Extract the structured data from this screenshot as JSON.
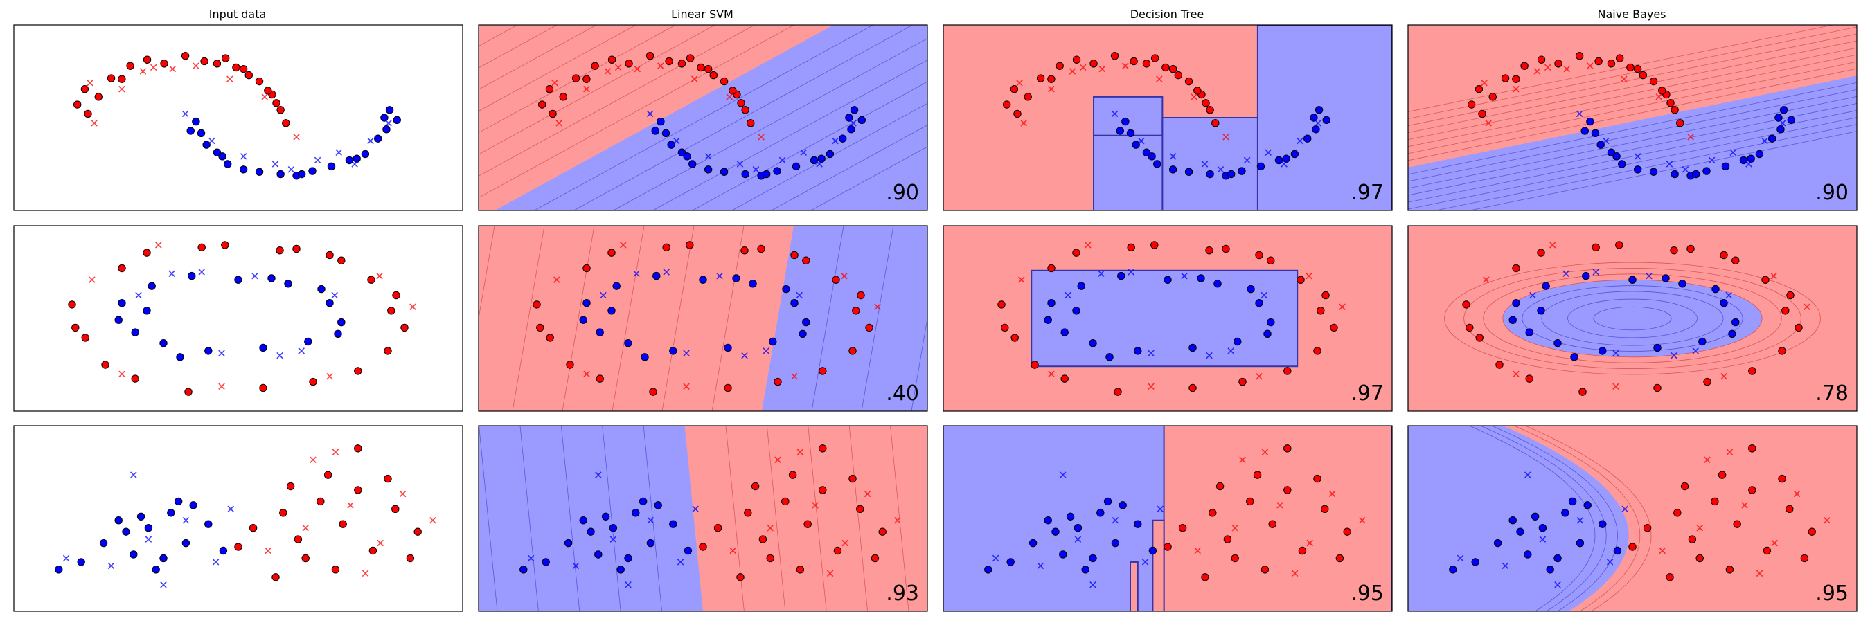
{
  "columns": [
    "Input data",
    "Linear SVM",
    "Decision Tree",
    "Naive Bayes"
  ],
  "colors": {
    "class0": "#ff0000",
    "class1": "#0000ff",
    "region0": "#ff9a9a",
    "region1": "#9a9aff",
    "point_edge": "#000000"
  },
  "legend_markers": {
    "train": "filled circle",
    "test": "cross"
  },
  "chart_data": [
    {
      "type": "scatter",
      "dataset": "moons",
      "xlim": [
        -1.62,
        2.62
      ],
      "ylim": [
        -0.95,
        1.45
      ],
      "scores": {
        "Linear SVM": ".90",
        "Decision Tree": ".97",
        "Naive Bayes": ".90"
      },
      "train_class0": [
        [
          -1.02,
          0.42
        ],
        [
          -0.95,
          0.62
        ],
        [
          -0.82,
          0.52
        ],
        [
          -0.7,
          0.76
        ],
        [
          -0.52,
          0.92
        ],
        [
          -0.36,
          1.0
        ],
        [
          -0.2,
          0.95
        ],
        [
          0.0,
          1.05
        ],
        [
          0.18,
          0.98
        ],
        [
          0.38,
          1.02
        ],
        [
          0.55,
          0.88
        ],
        [
          0.7,
          0.72
        ],
        [
          0.82,
          0.55
        ],
        [
          0.9,
          0.35
        ],
        [
          0.95,
          0.18
        ],
        [
          0.6,
          0.8
        ],
        [
          0.3,
          0.95
        ],
        [
          -0.6,
          0.75
        ],
        [
          0.78,
          0.6
        ],
        [
          -0.92,
          0.3
        ],
        [
          0.48,
          0.9
        ],
        [
          0.86,
          0.44
        ]
      ],
      "train_class1": [
        [
          0.1,
          0.2
        ],
        [
          0.15,
          0.05
        ],
        [
          0.2,
          -0.1
        ],
        [
          0.3,
          -0.2
        ],
        [
          0.4,
          -0.35
        ],
        [
          0.55,
          -0.42
        ],
        [
          0.7,
          -0.45
        ],
        [
          0.9,
          -0.48
        ],
        [
          1.05,
          -0.5
        ],
        [
          1.2,
          -0.44
        ],
        [
          1.38,
          -0.38
        ],
        [
          1.55,
          -0.3
        ],
        [
          1.7,
          -0.22
        ],
        [
          1.82,
          -0.02
        ],
        [
          1.9,
          0.1
        ],
        [
          2.0,
          0.22
        ],
        [
          1.93,
          0.35
        ],
        [
          0.05,
          0.08
        ],
        [
          0.35,
          -0.25
        ],
        [
          1.1,
          -0.48
        ],
        [
          1.62,
          -0.28
        ],
        [
          1.88,
          0.25
        ]
      ],
      "test_class0": [
        [
          -0.9,
          0.7
        ],
        [
          -0.6,
          0.62
        ],
        [
          -0.4,
          0.85
        ],
        [
          -0.3,
          0.9
        ],
        [
          -0.12,
          0.88
        ],
        [
          0.1,
          0.92
        ],
        [
          0.42,
          0.75
        ],
        [
          0.75,
          0.52
        ],
        [
          1.05,
          0.0
        ],
        [
          -0.86,
          0.18
        ]
      ],
      "test_class1": [
        [
          0.0,
          0.3
        ],
        [
          0.25,
          -0.05
        ],
        [
          0.55,
          -0.25
        ],
        [
          0.85,
          -0.35
        ],
        [
          1.0,
          -0.42
        ],
        [
          1.25,
          -0.3
        ],
        [
          1.45,
          -0.2
        ],
        [
          1.6,
          -0.35
        ],
        [
          1.75,
          -0.05
        ],
        [
          1.92,
          0.18
        ]
      ],
      "models": {
        "Linear SVM": {
          "kind": "linear",
          "w": [
            -0.75,
            1.0
          ],
          "b": -0.15,
          "spacing": 0.28
        },
        "Decision Tree": {
          "kind": "boxes",
          "boxes": [
            [
              -0.2,
              1.45,
              -0.95,
              0.02
            ],
            [
              -0.2,
              0.45,
              0.02,
              0.52
            ],
            [
              1.35,
              2.62,
              -0.95,
              1.45
            ],
            [
              0.45,
              1.35,
              -0.95,
              0.25
            ]
          ]
        },
        "Naive Bayes": {
          "kind": "linear",
          "w": [
            -0.28,
            1.0
          ],
          "b": -0.06,
          "spacing": 0.09
        }
      }
    },
    {
      "type": "scatter",
      "dataset": "circles",
      "xlim": [
        -1.35,
        1.35
      ],
      "ylim": [
        -1.2,
        1.2
      ],
      "scores": {
        "Linear SVM": ".40",
        "Decision Tree": ".97",
        "Naive Bayes": ".78"
      },
      "train_class0": [
        [
          -1.0,
          0.18
        ],
        [
          -0.92,
          -0.25
        ],
        [
          -0.8,
          -0.6
        ],
        [
          -0.7,
          0.65
        ],
        [
          -0.55,
          0.85
        ],
        [
          -0.3,
          -0.95
        ],
        [
          -0.08,
          0.95
        ],
        [
          0.15,
          -0.9
        ],
        [
          0.25,
          0.88
        ],
        [
          0.45,
          -0.82
        ],
        [
          0.62,
          0.75
        ],
        [
          0.72,
          -0.68
        ],
        [
          0.8,
          0.5
        ],
        [
          0.9,
          -0.42
        ],
        [
          0.95,
          0.3
        ],
        [
          1.0,
          -0.12
        ],
        [
          -0.62,
          -0.78
        ],
        [
          0.35,
          0.9
        ],
        [
          -0.22,
          0.92
        ],
        [
          0.92,
          0.1
        ],
        [
          -0.98,
          -0.12
        ],
        [
          0.55,
          0.82
        ]
      ],
      "train_class1": [
        [
          -0.7,
          0.2
        ],
        [
          -0.62,
          -0.18
        ],
        [
          -0.52,
          0.42
        ],
        [
          -0.45,
          -0.32
        ],
        [
          -0.28,
          0.55
        ],
        [
          -0.18,
          -0.42
        ],
        [
          0.0,
          0.5
        ],
        [
          0.15,
          -0.38
        ],
        [
          0.3,
          0.45
        ],
        [
          0.42,
          -0.3
        ],
        [
          0.55,
          0.2
        ],
        [
          0.62,
          -0.05
        ],
        [
          -0.72,
          -0.02
        ],
        [
          -0.35,
          -0.5
        ],
        [
          0.5,
          0.38
        ],
        [
          0.2,
          0.52
        ],
        [
          -0.55,
          0.1
        ],
        [
          0.6,
          -0.2
        ]
      ],
      "test_class0": [
        [
          -0.88,
          0.5
        ],
        [
          -0.7,
          -0.72
        ],
        [
          -0.1,
          -0.88
        ],
        [
          0.55,
          -0.75
        ],
        [
          0.85,
          0.55
        ],
        [
          1.05,
          0.15
        ],
        [
          -0.48,
          0.95
        ]
      ],
      "test_class1": [
        [
          -0.6,
          0.3
        ],
        [
          -0.4,
          0.58
        ],
        [
          -0.22,
          0.6
        ],
        [
          0.1,
          0.55
        ],
        [
          0.25,
          -0.48
        ],
        [
          0.38,
          -0.42
        ],
        [
          -0.1,
          -0.45
        ],
        [
          0.58,
          0.3
        ]
      ],
      "models": {
        "Linear SVM": {
          "kind": "linear",
          "w": [
            -1.0,
            0.08
          ],
          "b": 0.45,
          "spacing": 0.3
        },
        "Decision Tree": {
          "kind": "boxes",
          "boxes": [
            [
              -0.82,
              0.78,
              -0.62,
              0.62
            ]
          ]
        },
        "Naive Bayes": {
          "kind": "radial",
          "rx": 0.78,
          "ry": 0.5,
          "levels": [
            0.3,
            0.5,
            0.7,
            0.85,
            1.0,
            1.15,
            1.3,
            1.45
          ]
        }
      }
    },
    {
      "type": "scatter",
      "dataset": "linearly separable",
      "xlim": [
        -2.6,
        3.4
      ],
      "ylim": [
        -2.0,
        2.9
      ],
      "scores": {
        "Linear SVM": ".93",
        "Decision Tree": ".95",
        "Naive Bayes": ".95"
      },
      "train_class0": [
        [
          1.0,
          0.6
        ],
        [
          1.2,
          -0.1
        ],
        [
          1.5,
          0.9
        ],
        [
          1.8,
          0.3
        ],
        [
          2.0,
          1.2
        ],
        [
          2.2,
          -0.4
        ],
        [
          2.5,
          0.7
        ],
        [
          2.8,
          0.1
        ],
        [
          1.3,
          -0.6
        ],
        [
          1.6,
          1.6
        ],
        [
          2.0,
          2.3
        ],
        [
          0.6,
          0.2
        ],
        [
          0.9,
          -1.1
        ],
        [
          1.7,
          -0.9
        ],
        [
          2.4,
          1.5
        ],
        [
          0.4,
          -0.3
        ],
        [
          2.7,
          -0.6
        ],
        [
          1.1,
          1.3
        ]
      ],
      "train_class1": [
        [
          -2.0,
          -0.9
        ],
        [
          -1.7,
          -0.7
        ],
        [
          -1.2,
          0.4
        ],
        [
          -1.0,
          -0.5
        ],
        [
          -0.8,
          0.2
        ],
        [
          -0.5,
          0.6
        ],
        [
          -0.3,
          -0.2
        ],
        [
          0.0,
          0.3
        ],
        [
          -0.2,
          0.8
        ],
        [
          -0.7,
          -0.9
        ],
        [
          -1.4,
          -0.2
        ],
        [
          -0.9,
          0.5
        ],
        [
          0.2,
          -0.4
        ],
        [
          -0.6,
          -0.6
        ],
        [
          -1.1,
          0.1
        ],
        [
          -0.4,
          0.9
        ]
      ],
      "test_class0": [
        [
          1.3,
          0.2
        ],
        [
          1.9,
          0.8
        ],
        [
          2.3,
          -0.2
        ],
        [
          2.6,
          1.1
        ],
        [
          1.4,
          2.0
        ],
        [
          2.1,
          -1.0
        ],
        [
          0.8,
          -0.4
        ],
        [
          1.7,
          2.2
        ],
        [
          3.0,
          0.4
        ]
      ],
      "test_class1": [
        [
          -1.9,
          -0.6
        ],
        [
          -1.3,
          -0.8
        ],
        [
          -0.8,
          -0.1
        ],
        [
          -0.3,
          0.4
        ],
        [
          0.1,
          -0.7
        ],
        [
          -1.0,
          1.6
        ],
        [
          -0.6,
          -1.3
        ],
        [
          0.3,
          0.7
        ]
      ],
      "models": {
        "Linear SVM": {
          "kind": "linear",
          "w": [
            1.0,
            0.05
          ],
          "b": -0.3,
          "spacing": 0.55
        },
        "Decision Tree": {
          "kind": "boxes",
          "boxes": [
            [
              0.35,
              3.4,
              -2.0,
              2.9
            ],
            [
              -0.1,
              0.0,
              -2.0,
              -0.7
            ],
            [
              0.2,
              0.35,
              -2.0,
              0.4
            ]
          ]
        },
        "Naive Bayes": {
          "kind": "parabola",
          "a": 0.2,
          "c": 0.35,
          "levels": [
            -0.45,
            -0.3,
            -0.15,
            0.0,
            0.15,
            0.3
          ]
        }
      }
    }
  ]
}
